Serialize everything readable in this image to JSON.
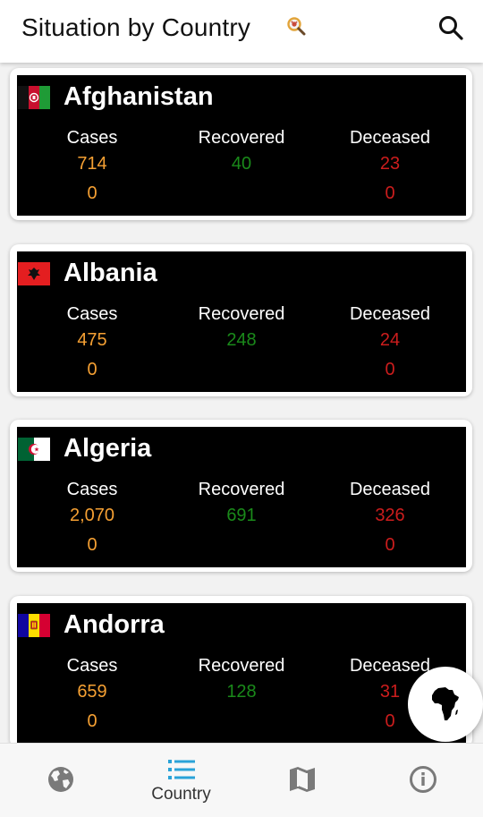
{
  "header": {
    "title": "Situation by Country",
    "title_icon": "magnifier-virus-icon",
    "search_icon": "search-icon"
  },
  "columns": {
    "cases": "Cases",
    "recovered": "Recovered",
    "deceased": "Deceased"
  },
  "colors": {
    "cases": "#f5a033",
    "recovered": "#1a8a1a",
    "deceased": "#cc1d1d",
    "accent": "#2aa3d8"
  },
  "countries": [
    {
      "name": "Afghanistan",
      "flag": "afghanistan-flag-icon",
      "cases": "714",
      "cases_new": "0",
      "recovered": "40",
      "deceased": "23",
      "deceased_new": "0"
    },
    {
      "name": "Albania",
      "flag": "albania-flag-icon",
      "cases": "475",
      "cases_new": "0",
      "recovered": "248",
      "deceased": "24",
      "deceased_new": "0"
    },
    {
      "name": "Algeria",
      "flag": "algeria-flag-icon",
      "cases": "2,070",
      "cases_new": "0",
      "recovered": "691",
      "deceased": "326",
      "deceased_new": "0"
    },
    {
      "name": "Andorra",
      "flag": "andorra-flag-icon",
      "cases": "659",
      "cases_new": "0",
      "recovered": "128",
      "deceased": "31",
      "deceased_new": "0"
    }
  ],
  "fab": {
    "icon": "africa-icon"
  },
  "bottom_nav": {
    "items": [
      {
        "icon": "globe-icon",
        "label": ""
      },
      {
        "icon": "list-icon",
        "label": "Country",
        "active": true
      },
      {
        "icon": "map-icon",
        "label": ""
      },
      {
        "icon": "info-icon",
        "label": ""
      }
    ]
  }
}
